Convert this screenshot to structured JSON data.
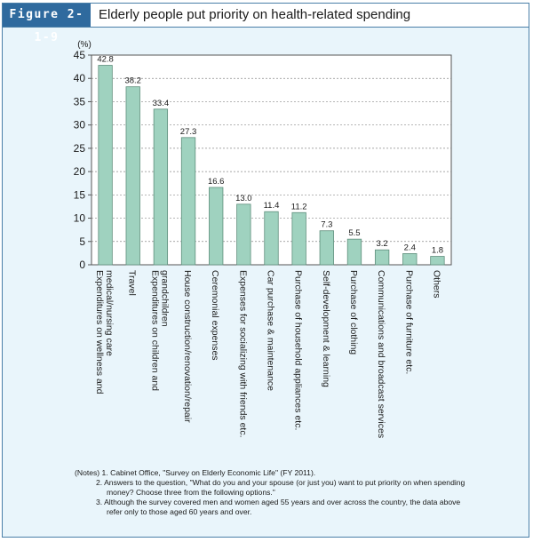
{
  "figure": {
    "number": "Figure 2-1-9",
    "title": "Elderly people put priority on health-related spending"
  },
  "colors": {
    "bar_fill": "#9fd2bf",
    "bar_stroke": "#5f8f7c",
    "header": "#2f6a9e",
    "panel": "#e9f5fb"
  },
  "chart_data": {
    "type": "bar",
    "ylabel": "(%)",
    "ylim": [
      0,
      45
    ],
    "yticks": [
      0,
      5,
      10,
      15,
      20,
      25,
      30,
      35,
      40,
      45
    ],
    "grid": true,
    "categories": [
      [
        "Expenditures on wellness and",
        "medical/nursing care"
      ],
      [
        "Travel"
      ],
      [
        "Expenditures on children and",
        "grandchildren"
      ],
      [
        "House construction/renovation/repair"
      ],
      [
        "Ceremonial expenses"
      ],
      [
        "Expenses for socializing with friends etc."
      ],
      [
        "Car purchase & maintenance"
      ],
      [
        "Purchase of household appliances etc."
      ],
      [
        "Self-development & learning"
      ],
      [
        "Purchase of clothing"
      ],
      [
        "Communications and broadcast services"
      ],
      [
        "Purchase of furniture etc."
      ],
      [
        "Others"
      ]
    ],
    "values": [
      42.8,
      38.2,
      33.4,
      27.3,
      16.6,
      13.0,
      11.4,
      11.2,
      7.3,
      5.5,
      3.2,
      2.4,
      1.8
    ],
    "value_labels": [
      "42.8",
      "38.2",
      "33.4",
      "27.3",
      "16.6",
      "13.0",
      "11.4",
      "11.2",
      "7.3",
      "5.5",
      "3.2",
      "2.4",
      "1.8"
    ]
  },
  "notes": [
    "(Notes) 1. Cabinet Office, \"Survey on Elderly Economic Life\" (FY 2011).",
    "2. Answers to the question, \"What do you and your spouse (or just you) want to put priority on when spending money? Choose three from the following options.\"",
    "3. Although the survey covered men and women aged 55 years and over across the country, the data above refer only to those aged 60 years and over."
  ]
}
